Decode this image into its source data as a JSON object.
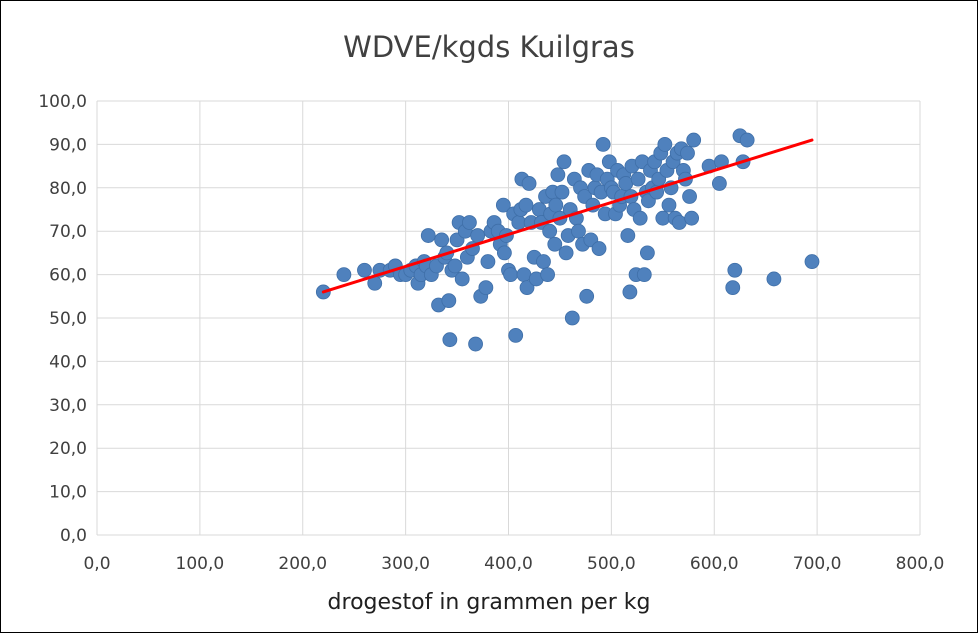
{
  "chart_data": {
    "type": "scatter",
    "title": "WDVE/kgds Kuilgras",
    "xlabel": "drogestof in grammen per kg",
    "ylabel": "",
    "xlim": [
      0,
      800
    ],
    "ylim": [
      0,
      100
    ],
    "x_ticks": [
      0,
      100,
      200,
      300,
      400,
      500,
      600,
      700,
      800
    ],
    "y_ticks": [
      0,
      10,
      20,
      30,
      40,
      50,
      60,
      70,
      80,
      90,
      100
    ],
    "x_tick_labels": [
      "0,0",
      "100,0",
      "200,0",
      "300,0",
      "400,0",
      "500,0",
      "600,0",
      "700,0",
      "800,0"
    ],
    "y_tick_labels": [
      "0,0",
      "10,0",
      "20,0",
      "30,0",
      "40,0",
      "50,0",
      "60,0",
      "70,0",
      "80,0",
      "90,0",
      "100,0"
    ],
    "grid": true,
    "marker_color": "#4F81BD",
    "trendline_color": "#FF0000",
    "trendline": {
      "x": [
        220,
        695
      ],
      "y": [
        56,
        91
      ]
    },
    "points": [
      [
        220,
        56
      ],
      [
        240,
        60
      ],
      [
        260,
        61
      ],
      [
        270,
        58
      ],
      [
        275,
        61
      ],
      [
        285,
        61
      ],
      [
        290,
        62
      ],
      [
        295,
        60
      ],
      [
        300,
        60
      ],
      [
        305,
        61
      ],
      [
        310,
        62
      ],
      [
        312,
        58
      ],
      [
        315,
        60
      ],
      [
        318,
        63
      ],
      [
        320,
        62
      ],
      [
        322,
        69
      ],
      [
        325,
        60
      ],
      [
        330,
        62
      ],
      [
        332,
        53
      ],
      [
        335,
        68
      ],
      [
        338,
        64
      ],
      [
        340,
        65
      ],
      [
        342,
        54
      ],
      [
        343,
        45
      ],
      [
        345,
        61
      ],
      [
        348,
        62
      ],
      [
        350,
        68
      ],
      [
        352,
        72
      ],
      [
        355,
        59
      ],
      [
        358,
        70
      ],
      [
        360,
        64
      ],
      [
        362,
        72
      ],
      [
        365,
        66
      ],
      [
        368,
        44
      ],
      [
        370,
        69
      ],
      [
        373,
        55
      ],
      [
        378,
        57
      ],
      [
        380,
        63
      ],
      [
        383,
        70
      ],
      [
        386,
        72
      ],
      [
        390,
        70
      ],
      [
        392,
        67
      ],
      [
        395,
        76
      ],
      [
        396,
        65
      ],
      [
        398,
        69
      ],
      [
        400,
        61
      ],
      [
        402,
        60
      ],
      [
        405,
        74
      ],
      [
        407,
        46
      ],
      [
        410,
        72
      ],
      [
        412,
        75
      ],
      [
        413,
        82
      ],
      [
        415,
        60
      ],
      [
        417,
        76
      ],
      [
        418,
        57
      ],
      [
        420,
        81
      ],
      [
        422,
        72
      ],
      [
        425,
        64
      ],
      [
        427,
        59
      ],
      [
        430,
        75
      ],
      [
        432,
        72
      ],
      [
        434,
        63
      ],
      [
        436,
        78
      ],
      [
        438,
        60
      ],
      [
        440,
        70
      ],
      [
        441,
        74
      ],
      [
        443,
        79
      ],
      [
        445,
        67
      ],
      [
        446,
        76
      ],
      [
        448,
        83
      ],
      [
        450,
        73
      ],
      [
        452,
        79
      ],
      [
        454,
        86
      ],
      [
        456,
        65
      ],
      [
        458,
        69
      ],
      [
        460,
        75
      ],
      [
        462,
        50
      ],
      [
        464,
        82
      ],
      [
        466,
        73
      ],
      [
        468,
        70
      ],
      [
        470,
        80
      ],
      [
        472,
        67
      ],
      [
        474,
        78
      ],
      [
        476,
        55
      ],
      [
        478,
        84
      ],
      [
        480,
        68
      ],
      [
        482,
        76
      ],
      [
        484,
        80
      ],
      [
        486,
        83
      ],
      [
        488,
        66
      ],
      [
        490,
        79
      ],
      [
        492,
        90
      ],
      [
        494,
        74
      ],
      [
        496,
        82
      ],
      [
        498,
        86
      ],
      [
        500,
        80
      ],
      [
        502,
        79
      ],
      [
        504,
        74
      ],
      [
        506,
        84
      ],
      [
        508,
        76
      ],
      [
        510,
        78
      ],
      [
        512,
        83
      ],
      [
        514,
        81
      ],
      [
        516,
        69
      ],
      [
        518,
        56
      ],
      [
        519,
        78
      ],
      [
        520,
        85
      ],
      [
        522,
        75
      ],
      [
        524,
        60
      ],
      [
        526,
        82
      ],
      [
        528,
        73
      ],
      [
        530,
        86
      ],
      [
        532,
        60
      ],
      [
        534,
        79
      ],
      [
        535,
        65
      ],
      [
        536,
        77
      ],
      [
        538,
        84
      ],
      [
        540,
        80
      ],
      [
        542,
        86
      ],
      [
        544,
        79
      ],
      [
        546,
        82
      ],
      [
        548,
        88
      ],
      [
        550,
        73
      ],
      [
        552,
        90
      ],
      [
        554,
        84
      ],
      [
        556,
        76
      ],
      [
        558,
        80
      ],
      [
        560,
        86
      ],
      [
        562,
        73
      ],
      [
        564,
        88
      ],
      [
        566,
        72
      ],
      [
        568,
        89
      ],
      [
        570,
        84
      ],
      [
        572,
        82
      ],
      [
        574,
        88
      ],
      [
        576,
        78
      ],
      [
        578,
        73
      ],
      [
        580,
        91
      ],
      [
        595,
        85
      ],
      [
        605,
        81
      ],
      [
        607,
        86
      ],
      [
        618,
        57
      ],
      [
        620,
        61
      ],
      [
        625,
        92
      ],
      [
        628,
        86
      ],
      [
        632,
        91
      ],
      [
        658,
        59
      ],
      [
        695,
        63
      ]
    ]
  }
}
